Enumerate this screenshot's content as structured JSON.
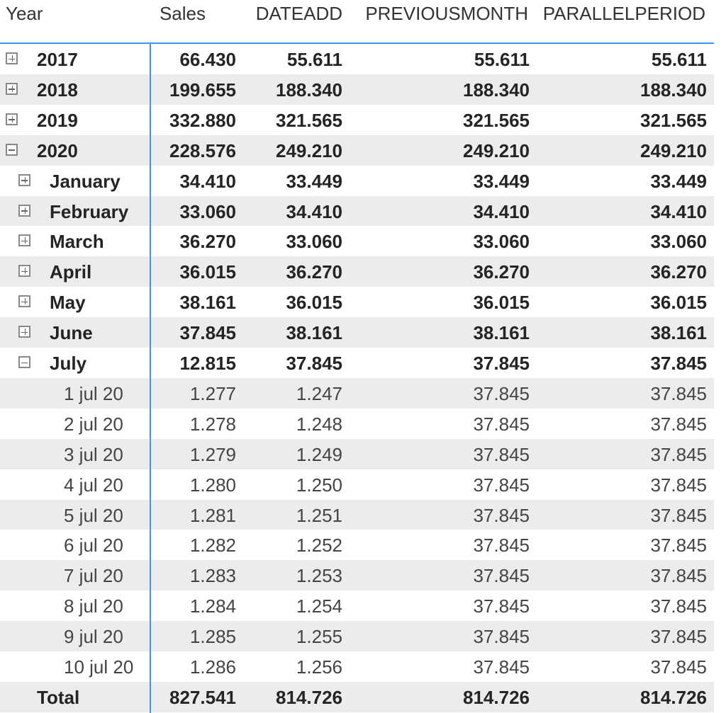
{
  "headers": [
    "Year",
    "Sales",
    "DATEADD",
    "PREVIOUSMONTH",
    "PARALLELPERIOD"
  ],
  "accent_color": "#3a96f0",
  "rows": [
    {
      "label": "2017",
      "level": 0,
      "toggle": "expand",
      "values": [
        "66.430",
        "55.611",
        "55.611",
        "55.611"
      ]
    },
    {
      "label": "2018",
      "level": 0,
      "toggle": "expand",
      "values": [
        "199.655",
        "188.340",
        "188.340",
        "188.340"
      ]
    },
    {
      "label": "2019",
      "level": 0,
      "toggle": "expand",
      "values": [
        "332.880",
        "321.565",
        "321.565",
        "321.565"
      ]
    },
    {
      "label": "2020",
      "level": 0,
      "toggle": "collapse",
      "values": [
        "228.576",
        "249.210",
        "249.210",
        "249.210"
      ]
    },
    {
      "label": "January",
      "level": 1,
      "toggle": "expand",
      "values": [
        "34.410",
        "33.449",
        "33.449",
        "33.449"
      ]
    },
    {
      "label": "February",
      "level": 1,
      "toggle": "expand",
      "values": [
        "33.060",
        "34.410",
        "34.410",
        "34.410"
      ]
    },
    {
      "label": "March",
      "level": 1,
      "toggle": "expand",
      "values": [
        "36.270",
        "33.060",
        "33.060",
        "33.060"
      ]
    },
    {
      "label": "April",
      "level": 1,
      "toggle": "expand",
      "values": [
        "36.015",
        "36.270",
        "36.270",
        "36.270"
      ]
    },
    {
      "label": "May",
      "level": 1,
      "toggle": "expand",
      "values": [
        "38.161",
        "36.015",
        "36.015",
        "36.015"
      ]
    },
    {
      "label": "June",
      "level": 1,
      "toggle": "expand",
      "values": [
        "37.845",
        "38.161",
        "38.161",
        "38.161"
      ]
    },
    {
      "label": "July",
      "level": 1,
      "toggle": "collapse",
      "values": [
        "12.815",
        "37.845",
        "37.845",
        "37.845"
      ]
    },
    {
      "label": "1 jul 20",
      "level": 2,
      "values": [
        "1.277",
        "1.247",
        "37.845",
        "37.845"
      ]
    },
    {
      "label": "2 jul 20",
      "level": 2,
      "values": [
        "1.278",
        "1.248",
        "37.845",
        "37.845"
      ]
    },
    {
      "label": "3 jul 20",
      "level": 2,
      "values": [
        "1.279",
        "1.249",
        "37.845",
        "37.845"
      ]
    },
    {
      "label": "4 jul 20",
      "level": 2,
      "values": [
        "1.280",
        "1.250",
        "37.845",
        "37.845"
      ]
    },
    {
      "label": "5 jul 20",
      "level": 2,
      "values": [
        "1.281",
        "1.251",
        "37.845",
        "37.845"
      ]
    },
    {
      "label": "6 jul 20",
      "level": 2,
      "values": [
        "1.282",
        "1.252",
        "37.845",
        "37.845"
      ]
    },
    {
      "label": "7 jul 20",
      "level": 2,
      "values": [
        "1.283",
        "1.253",
        "37.845",
        "37.845"
      ]
    },
    {
      "label": "8 jul 20",
      "level": 2,
      "values": [
        "1.284",
        "1.254",
        "37.845",
        "37.845"
      ]
    },
    {
      "label": "9 jul 20",
      "level": 2,
      "values": [
        "1.285",
        "1.255",
        "37.845",
        "37.845"
      ]
    },
    {
      "label": "10 jul 20",
      "level": 2,
      "values": [
        "1.286",
        "1.256",
        "37.845",
        "37.845"
      ]
    }
  ],
  "total": {
    "label": "Total",
    "values": [
      "827.541",
      "814.726",
      "814.726",
      "814.726"
    ]
  }
}
